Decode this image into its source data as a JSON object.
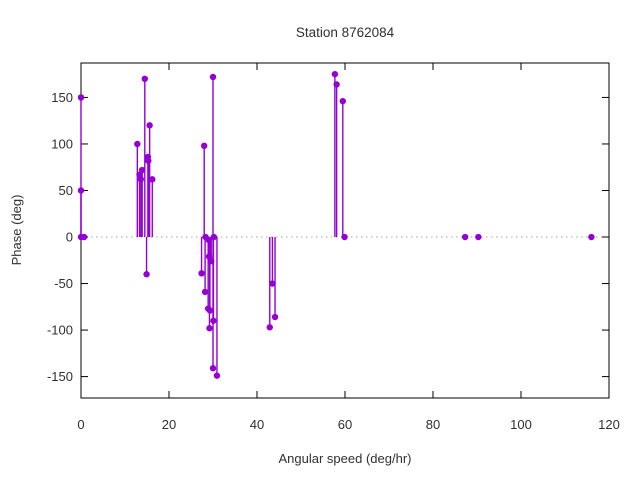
{
  "title": "Station 8762084",
  "chart_data": {
    "type": "scatter",
    "style": "impulses-with-points",
    "title": "Station 8762084",
    "xlabel": "Angular speed (deg/hr)",
    "ylabel": "Phase (deg)",
    "xlim": [
      0,
      120
    ],
    "ylim": [
      -173,
      187
    ],
    "xticks": [
      0,
      20,
      40,
      60,
      80,
      100,
      120
    ],
    "yticks": [
      -150,
      -100,
      -50,
      0,
      50,
      100,
      150
    ],
    "grid": false,
    "zero_line": true,
    "legend": "none",
    "points": [
      [
        0,
        150
      ],
      [
        0,
        50
      ],
      [
        0,
        0
      ],
      [
        0.7,
        0
      ],
      [
        12.8,
        100
      ],
      [
        13.3,
        67
      ],
      [
        13.6,
        62
      ],
      [
        13.9,
        72
      ],
      [
        14.5,
        170
      ],
      [
        14.9,
        -40
      ],
      [
        15.2,
        86
      ],
      [
        15.3,
        82
      ],
      [
        15.6,
        120
      ],
      [
        16.2,
        62
      ],
      [
        27.4,
        -39
      ],
      [
        28,
        98
      ],
      [
        28.2,
        -59
      ],
      [
        28.3,
        0
      ],
      [
        28.9,
        -77
      ],
      [
        29,
        -3
      ],
      [
        29.1,
        -21
      ],
      [
        29.2,
        -98
      ],
      [
        29.3,
        -79
      ],
      [
        29.6,
        -26
      ],
      [
        30,
        172
      ],
      [
        30.1,
        -90
      ],
      [
        30.2,
        0
      ],
      [
        30,
        -141
      ],
      [
        30.9,
        -149
      ],
      [
        42.9,
        -97
      ],
      [
        43.5,
        -50
      ],
      [
        44.1,
        -86
      ],
      [
        57.7,
        175
      ],
      [
        58.1,
        164
      ],
      [
        59.5,
        146
      ],
      [
        59.9,
        0
      ],
      [
        87.3,
        0
      ],
      [
        90.3,
        0
      ],
      [
        116,
        0
      ]
    ]
  },
  "colors": {
    "series": "#9400d3",
    "frame": "#000000",
    "zero_line": "#a6a6a6",
    "text": "#303030",
    "background": "#ffffff"
  }
}
